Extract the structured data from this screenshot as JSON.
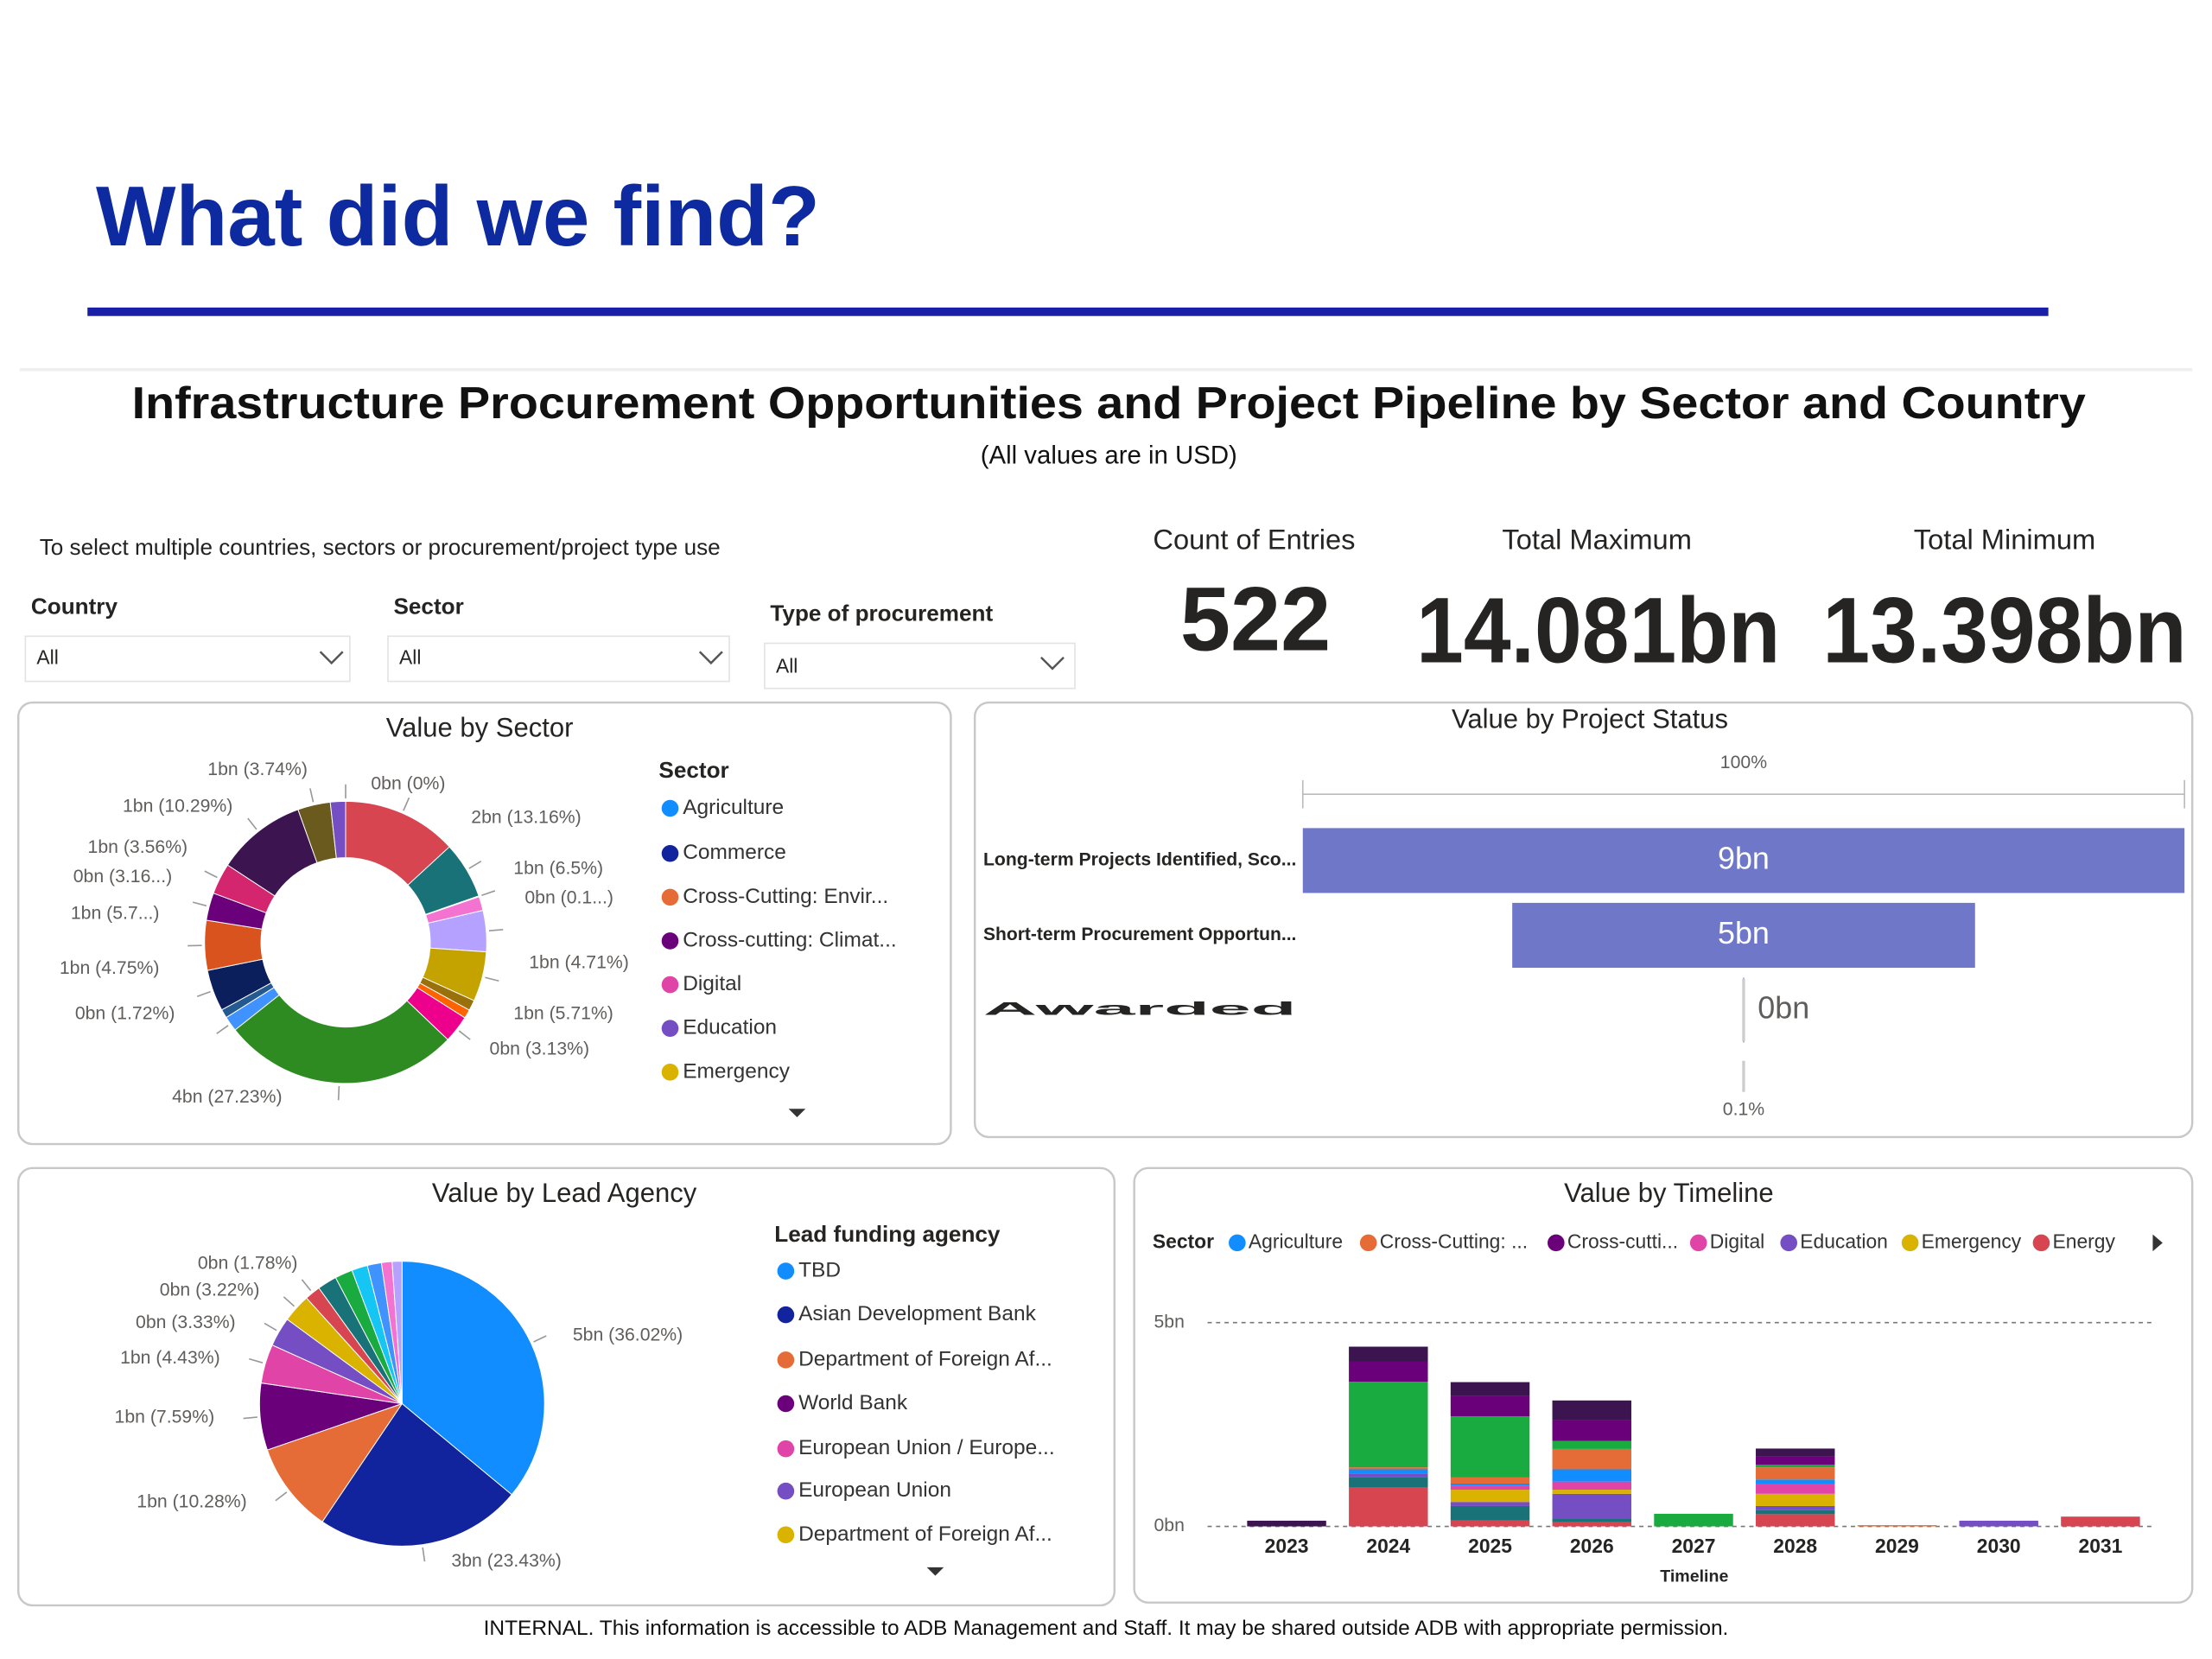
{
  "header": {
    "title": "What did we find?"
  },
  "dashboard": {
    "title": "Infrastructure Procurement Opportunities and Project Pipeline by Sector and Country",
    "subtitle": "(All values are in USD)",
    "instruction": "To select multiple countries, sectors or procurement/project type use"
  },
  "filters": [
    {
      "label": "Country",
      "value": "All"
    },
    {
      "label": "Sector",
      "value": "All"
    },
    {
      "label": "Type of procurement",
      "value": "All"
    }
  ],
  "kpis": [
    {
      "label": "Count of Entries",
      "value": 522
    },
    {
      "label": "Total Maximum",
      "value": "14.081bn"
    },
    {
      "label": "Total Minimum",
      "value": "13.398bn"
    }
  ],
  "chart_data": [
    {
      "type": "donut",
      "title": "Value by Sector",
      "legend_title": "Sector",
      "legend": [
        {
          "name": "Agriculture",
          "color": "#118DFF"
        },
        {
          "name": "Commerce",
          "color": "#12239E"
        },
        {
          "name": "Cross-Cutting:  Envir...",
          "color": "#E66C37"
        },
        {
          "name": "Cross-cutting: Climat...",
          "color": "#6B007B"
        },
        {
          "name": "Digital",
          "color": "#E044A7"
        },
        {
          "name": "Education",
          "color": "#744EC2"
        },
        {
          "name": "Emergency",
          "color": "#D9B300"
        }
      ],
      "values": [
        0,
        13.16,
        6.5,
        0.1,
        1.6,
        4.71,
        5.71,
        1.2,
        1.0,
        3.13,
        27.23,
        1.72,
        1.0,
        4.75,
        5.7,
        3.16,
        3.56,
        10.29,
        3.74,
        1.74
      ],
      "value_labels": [
        "0bn (0%)",
        "2bn (13.16%)",
        "1bn (6.5%)",
        "0bn (0.1...)",
        null,
        "1bn (4.71%)",
        "1bn (5.71%)",
        null,
        null,
        "0bn (3.13%)",
        "4bn (27.23%)",
        "0bn (1.72%)",
        null,
        "1bn (4.75%)",
        "1bn (5.7...)",
        "0bn (3.16...)",
        "1bn (3.56%)",
        "1bn (10.29%)",
        "1bn (3.74%)",
        null
      ],
      "colors": [
        "#118DFF",
        "#D64550",
        "#197278",
        "#7FD7E8",
        "#F472D0",
        "#B5A1FF",
        "#C4A200",
        "#99700A",
        "#FF6300",
        "#EC008C",
        "#2E8B22",
        "#4092FF",
        "#255A91",
        "#0B1F5C",
        "#D9531E",
        "#6B007B",
        "#D4266E",
        "#3B1450",
        "#6B5A1E",
        "#744EC2"
      ]
    },
    {
      "type": "funnel",
      "title": "Value by Project Status",
      "top_label": "100%",
      "bottom_label": "0.1%",
      "color": "#6F78C8",
      "categories": [
        "Long-term Projects Identified, Sco...",
        "Short-term Procurement Opportun...",
        "Awarded"
      ],
      "values": [
        9.24,
        4.85,
        0.01
      ],
      "value_labels": [
        "9bn",
        "5bn",
        "0bn"
      ]
    },
    {
      "type": "pie",
      "title": "Value by Lead Agency",
      "legend_title": "Lead funding agency",
      "legend": [
        {
          "name": "TBD",
          "color": "#118DFF"
        },
        {
          "name": "Asian Development Bank",
          "color": "#12239E"
        },
        {
          "name": "Department of Foreign Af...",
          "color": "#E66C37"
        },
        {
          "name": "World Bank",
          "color": "#6B007B"
        },
        {
          "name": "European Union / Europe...",
          "color": "#E044A7"
        },
        {
          "name": "European Union",
          "color": "#744EC2"
        },
        {
          "name": "Department of Foreign Af...",
          "color": "#D9B300"
        }
      ],
      "values": [
        36.02,
        23.43,
        10.28,
        7.59,
        4.43,
        3.33,
        3.22,
        1.78,
        2.2,
        2.0,
        1.8,
        1.6,
        1.2,
        1.12
      ],
      "value_labels": [
        "5bn (36.02%)",
        "3bn (23.43%)",
        "1bn (10.28%)",
        "1bn (7.59%)",
        "1bn (4.43%)",
        "0bn (3.33%)",
        "0bn (3.22%)",
        "0bn (1.78%)",
        null,
        null,
        null,
        null,
        null,
        null
      ],
      "colors": [
        "#118DFF",
        "#12239E",
        "#E66C37",
        "#6B007B",
        "#E044A7",
        "#744EC2",
        "#D9B300",
        "#D64550",
        "#197278",
        "#1AAB40",
        "#15C6F4",
        "#4092FF",
        "#F472D0",
        "#B5A1FF"
      ]
    },
    {
      "type": "stacked_bar",
      "title": "Value by Timeline",
      "legend_title": "Sector",
      "x_label": "Timeline",
      "categories": [
        "2023",
        "2024",
        "2025",
        "2026",
        "2027",
        "2028",
        "2029",
        "2030",
        "2031"
      ],
      "ylim": [
        0,
        5.4
      ],
      "yticks": [
        {
          "value": 0,
          "label": "0bn"
        },
        {
          "value": 5,
          "label": "5bn"
        }
      ],
      "grid": true,
      "series": [
        {
          "name": "Agriculture",
          "color": "#118DFF",
          "values": [
            0,
            0.1,
            0.05,
            0.3,
            0,
            0.1,
            0,
            0,
            0
          ]
        },
        {
          "name": "Cross-Cutting: ...",
          "color": "#E66C37",
          "values": [
            0,
            0.05,
            0.15,
            0.5,
            0,
            0.3,
            0.03,
            0,
            0
          ]
        },
        {
          "name": "Cross-cutti...",
          "color": "#6B007B",
          "values": [
            0,
            0.5,
            0.5,
            0.5,
            0,
            0.2,
            0,
            0,
            0
          ]
        },
        {
          "name": "Digital",
          "color": "#E044A7",
          "values": [
            0,
            0,
            0.1,
            0.2,
            0,
            0.25,
            0,
            0,
            0
          ]
        },
        {
          "name": "Education",
          "color": "#744EC2",
          "values": [
            0,
            0.1,
            0.1,
            0.6,
            0,
            0.1,
            0,
            0.14,
            0
          ]
        },
        {
          "name": "Emergency",
          "color": "#D9B300",
          "values": [
            0,
            0,
            0.3,
            0.1,
            0,
            0.3,
            0,
            0,
            0
          ]
        },
        {
          "name": "Energy",
          "color": "#D64550",
          "values": [
            0,
            0.95,
            0.15,
            0.1,
            0,
            0.3,
            0,
            0,
            0.24
          ]
        },
        {
          "name": null,
          "color": "#197278",
          "values": [
            0,
            0.25,
            0.35,
            0.1,
            0,
            0.1,
            0,
            0,
            0
          ]
        },
        {
          "name": null,
          "color": "#1AAB40",
          "values": [
            0,
            2.1,
            1.5,
            0.2,
            0.31,
            0.06,
            0,
            0,
            0
          ]
        },
        {
          "name": null,
          "color": "#3B1450",
          "values": [
            0.14,
            0.36,
            0.34,
            0.49,
            0,
            0.2,
            0,
            0,
            0
          ]
        }
      ]
    }
  ],
  "footer": "INTERNAL. This information is accessible to ADB Management and Staff. It may be shared outside ADB with appropriate permission."
}
